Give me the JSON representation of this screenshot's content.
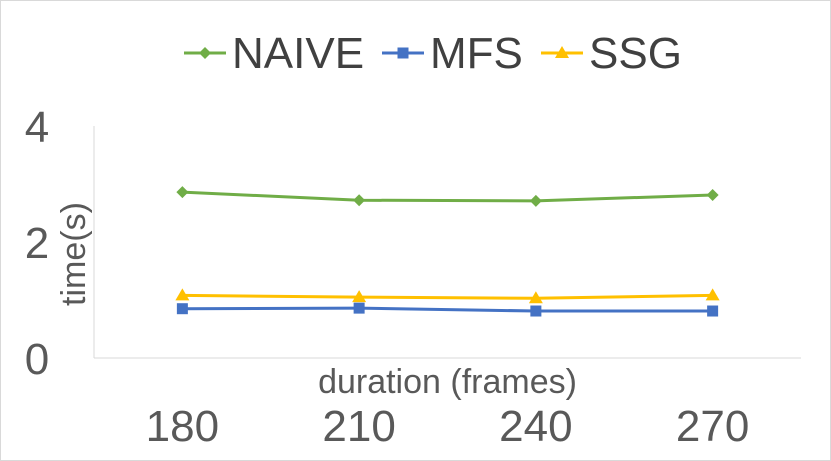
{
  "chart_data": {
    "type": "line",
    "xlabel": "duration (frames)",
    "ylabel": "time(s)",
    "categories": [
      "180",
      "210",
      "240",
      "270"
    ],
    "ylim": [
      0,
      4
    ],
    "yticks": [
      "0",
      "2",
      "4"
    ],
    "grid": false,
    "legend_position": "top",
    "series": [
      {
        "name": "NAIVE",
        "values": [
          2.86,
          2.72,
          2.71,
          2.81
        ],
        "color": "#70ad47",
        "marker": "diamond"
      },
      {
        "name": "MFS",
        "values": [
          0.85,
          0.86,
          0.81,
          0.81
        ],
        "color": "#4472c4",
        "marker": "square"
      },
      {
        "name": "SSG",
        "values": [
          1.08,
          1.05,
          1.03,
          1.08
        ],
        "color": "#ffc000",
        "marker": "triangle"
      }
    ]
  }
}
